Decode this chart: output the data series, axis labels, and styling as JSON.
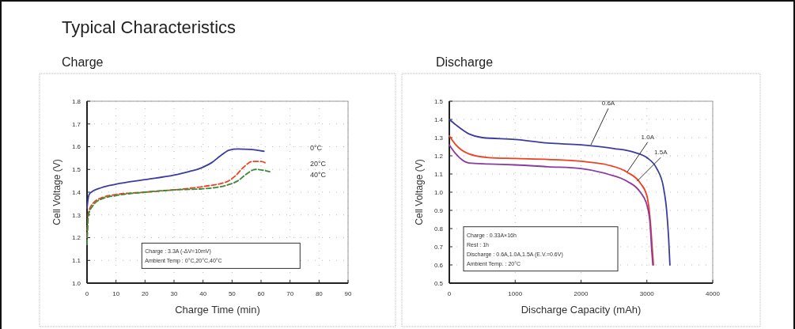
{
  "chart_data": [
    {
      "type": "line",
      "title": "Typical Characteristics",
      "subtitle": "Charge",
      "xlabel": "Charge Time (min)",
      "ylabel": "Cell Voltage (V)",
      "xlim": [
        0,
        90
      ],
      "ylim": [
        1.0,
        1.8
      ],
      "xticks": [
        0,
        10,
        20,
        30,
        40,
        50,
        60,
        70,
        80,
        90
      ],
      "yticks": [
        {
          "value": 1.0,
          "label": "1.0"
        },
        {
          "value": 1.1,
          "label": "1.1"
        },
        {
          "value": 1.2,
          "label": "1.2"
        },
        {
          "value": 1.3,
          "label": "1.3"
        },
        {
          "value": 1.4,
          "label": "1.4"
        },
        {
          "value": 1.5,
          "label": "1.5"
        },
        {
          "value": 1.6,
          "label": "1.6"
        },
        {
          "value": 1.7,
          "label": "1.7"
        },
        {
          "value": 1.8,
          "label": "1.8"
        }
      ],
      "grid": true,
      "annotations": [
        "Charge : 3.3A (-ΔV=10mV)",
        "Ambient Temp : 0°C,20°C,40°C"
      ],
      "series": [
        {
          "name": "0°C",
          "color": "#3c3ca0",
          "line_style": "solid",
          "x": [
            0,
            0.5,
            1,
            5,
            10,
            20,
            30,
            35,
            40,
            43,
            46,
            49,
            52,
            56,
            61
          ],
          "values": [
            1.33,
            1.38,
            1.395,
            1.42,
            1.435,
            1.455,
            1.475,
            1.49,
            1.51,
            1.53,
            1.56,
            1.585,
            1.59,
            1.588,
            1.58
          ]
        },
        {
          "name": "20°C",
          "color": "#f04020",
          "line_style": "dashed",
          "x": [
            0,
            0.5,
            2,
            5,
            10,
            20,
            30,
            40,
            48,
            51,
            54,
            57,
            60,
            62
          ],
          "values": [
            1.2,
            1.31,
            1.35,
            1.375,
            1.39,
            1.4,
            1.41,
            1.425,
            1.445,
            1.47,
            1.51,
            1.535,
            1.535,
            1.525
          ]
        },
        {
          "name": "40°C",
          "color": "#3a8a3a",
          "line_style": "dashed",
          "x": [
            0,
            0.5,
            2,
            5,
            10,
            20,
            30,
            40,
            48,
            52,
            55,
            58,
            60,
            63
          ],
          "values": [
            1.17,
            1.3,
            1.34,
            1.37,
            1.385,
            1.4,
            1.41,
            1.415,
            1.43,
            1.45,
            1.48,
            1.5,
            1.498,
            1.49
          ]
        }
      ]
    },
    {
      "type": "line",
      "title": "Discharge",
      "xlabel": "Discharge Capacity (mAh)",
      "ylabel": "Cell Voltage (V)",
      "xlim": [
        0,
        4000
      ],
      "ylim": [
        0.5,
        1.5
      ],
      "xticks": [
        0,
        1000,
        2000,
        3000,
        4000
      ],
      "yticks": [
        {
          "value": 0.5,
          "label": "0.5"
        },
        {
          "value": 0.6,
          "label": "0.6"
        },
        {
          "value": 0.7,
          "label": "0.7"
        },
        {
          "value": 0.8,
          "label": "0.8"
        },
        {
          "value": 0.9,
          "label": "0.9"
        },
        {
          "value": 1.0,
          "label": "1.0"
        },
        {
          "value": 1.1,
          "label": "1.1"
        },
        {
          "value": 1.2,
          "label": "1.2"
        },
        {
          "value": 1.3,
          "label": "1.3"
        },
        {
          "value": 1.4,
          "label": "1.4"
        },
        {
          "value": 1.5,
          "label": "1.5"
        }
      ],
      "grid": true,
      "annotations": [
        "Charge : 0.33A×16h",
        "Rest : 1h",
        "Discharge : 0.6A,1.0A,1.5A (E.V.=0.6V)",
        "Ambient Temp. : 20°C",
        {
          "text": "0.6A",
          "x": 2150,
          "y": 1.26
        },
        {
          "text": "1.0A",
          "x": 2700,
          "y": 1.11
        },
        {
          "text": "1.5A",
          "x": 2850,
          "y": 1.06
        }
      ],
      "series": [
        {
          "color": "#3c3ca0",
          "line_style": "solid",
          "x": [
            0,
            100,
            300,
            500,
            1000,
            1500,
            2000,
            2500,
            2800,
            3000,
            3150,
            3250,
            3300,
            3330,
            3350
          ],
          "values": [
            1.4,
            1.37,
            1.32,
            1.3,
            1.29,
            1.27,
            1.26,
            1.24,
            1.22,
            1.19,
            1.13,
            1.03,
            0.9,
            0.75,
            0.6
          ]
        },
        {
          "color": "#f04020",
          "line_style": "solid",
          "x": [
            0,
            100,
            300,
            600,
            1000,
            1500,
            2000,
            2400,
            2700,
            2900,
            3000,
            3050,
            3080,
            3100
          ],
          "values": [
            1.31,
            1.26,
            1.21,
            1.19,
            1.185,
            1.18,
            1.17,
            1.15,
            1.11,
            1.05,
            0.98,
            0.85,
            0.7,
            0.6
          ]
        },
        {
          "color": "#8a3aa0",
          "line_style": "solid",
          "x": [
            0,
            100,
            300,
            600,
            1000,
            1500,
            2000,
            2400,
            2700,
            2900,
            3000,
            3050,
            3070,
            3090
          ],
          "values": [
            1.26,
            1.21,
            1.16,
            1.155,
            1.15,
            1.14,
            1.13,
            1.1,
            1.06,
            1.0,
            0.93,
            0.82,
            0.7,
            0.6
          ]
        }
      ]
    }
  ]
}
